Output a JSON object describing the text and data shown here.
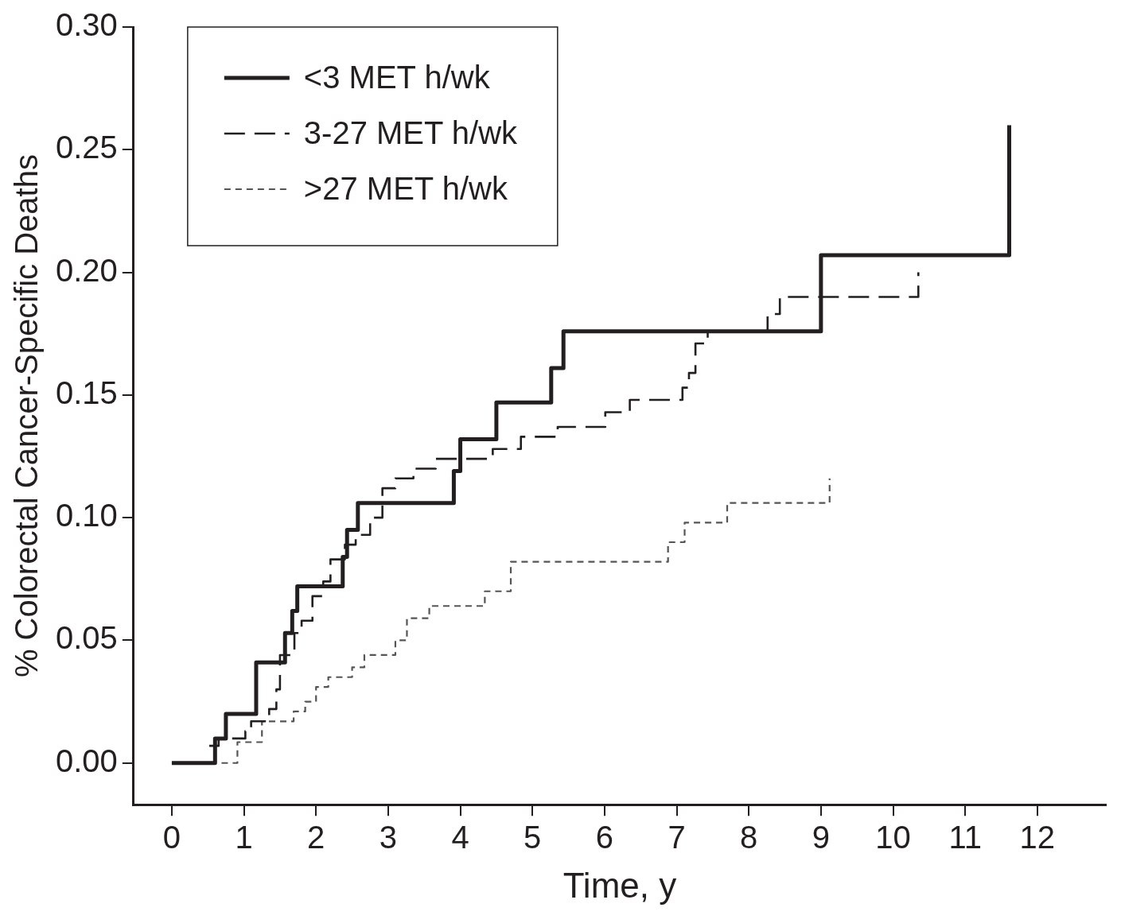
{
  "chart_data": {
    "type": "step",
    "xlabel": "Time, y",
    "ylabel": "% Colorectal Cancer-Specific Deaths",
    "legend": "top left",
    "xlim": [
      -0.53,
      12.95
    ],
    "ylim": [
      -0.017,
      0.3
    ],
    "xticks": [
      0,
      1,
      2,
      3,
      4,
      5,
      6,
      7,
      8,
      9,
      10,
      11,
      12
    ],
    "yticks": [
      {
        "value": 0,
        "label": "0.00"
      },
      {
        "value": 0.05,
        "label": "0.05"
      },
      {
        "value": 0.1,
        "label": "0.10"
      },
      {
        "value": 0.15,
        "label": "0.15"
      },
      {
        "value": 0.2,
        "label": "0.20"
      },
      {
        "value": 0.25,
        "label": "0.25"
      },
      {
        "value": 0.3,
        "label": "0.30"
      }
    ],
    "series": [
      {
        "name": "<3 MET h/wk",
        "color": "#231f20",
        "line_style": "solid",
        "x": [
          0,
          0.6,
          0.75,
          1.17,
          1.57,
          1.67,
          1.74,
          2.37,
          2.43,
          2.58,
          3.91,
          4.0,
          4.5,
          5.26,
          5.43,
          9.0,
          11.61
        ],
        "values": [
          0,
          0.01,
          0.02,
          0.041,
          0.053,
          0.062,
          0.072,
          0.084,
          0.095,
          0.106,
          0.119,
          0.132,
          0.147,
          0.161,
          0.176,
          0.207,
          0.26
        ]
      },
      {
        "name": "3-27 MET h/wk",
        "color": "#231f20",
        "line_style": "dashed",
        "x": [
          0.52,
          0.65,
          1.02,
          1.1,
          1.35,
          1.45,
          1.5,
          1.7,
          1.8,
          1.95,
          2.1,
          2.2,
          2.4,
          2.55,
          2.75,
          2.92,
          3.1,
          3.35,
          3.66,
          4.45,
          4.84,
          5.35,
          6.01,
          6.35,
          7.08,
          7.17,
          7.26,
          7.43,
          8.26,
          8.43,
          10.35
        ],
        "values": [
          0.007,
          0.01,
          0.013,
          0.017,
          0.022,
          0.03,
          0.044,
          0.053,
          0.058,
          0.068,
          0.074,
          0.083,
          0.089,
          0.093,
          0.1,
          0.112,
          0.116,
          0.12,
          0.124,
          0.128,
          0.133,
          0.137,
          0.143,
          0.148,
          0.153,
          0.159,
          0.171,
          0.176,
          0.183,
          0.19,
          0.2
        ]
      },
      {
        "name": ">27 MET h/wk",
        "color": "#555555",
        "line_style": "dotted",
        "x": [
          0.69,
          0.91,
          1.25,
          1.69,
          1.85,
          2.0,
          2.17,
          2.5,
          2.67,
          3.1,
          3.26,
          3.57,
          4.34,
          4.7,
          6.88,
          7.11,
          7.7,
          9.12
        ],
        "values": [
          0,
          0.0085,
          0.017,
          0.021,
          0.025,
          0.031,
          0.035,
          0.039,
          0.044,
          0.05,
          0.059,
          0.064,
          0.07,
          0.082,
          0.09,
          0.098,
          0.106,
          0.116
        ]
      }
    ]
  }
}
